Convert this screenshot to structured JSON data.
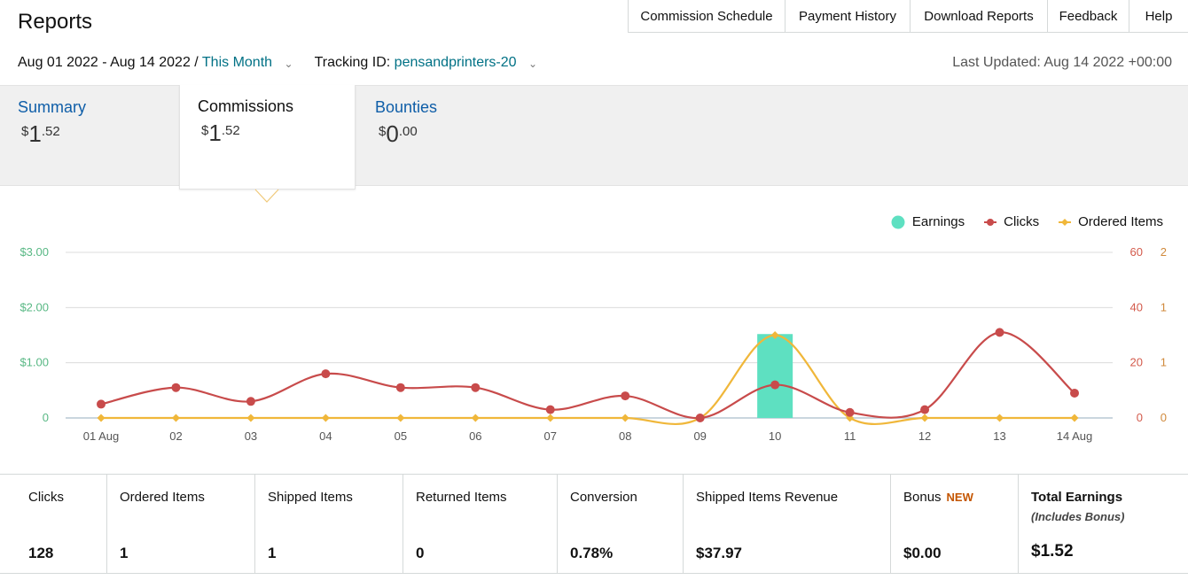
{
  "header": {
    "title": "Reports",
    "nav": [
      "Commission Schedule",
      "Payment History",
      "Download Reports",
      "Feedback",
      "Help"
    ]
  },
  "filters": {
    "date_range": "Aug 01 2022 - Aug 14 2022",
    "separator": "/",
    "period": "This Month",
    "tracking_label": "Tracking ID:",
    "tracking_id": "pensandprinters-20",
    "last_updated": "Last Updated: Aug 14 2022 +00:00"
  },
  "tabs": [
    {
      "label": "Summary",
      "currency": "$",
      "whole": "1",
      "cents": ".52",
      "active": false
    },
    {
      "label": "Commissions",
      "currency": "$",
      "whole": "1",
      "cents": ".52",
      "active": true
    },
    {
      "label": "Bounties",
      "currency": "$",
      "whole": "0",
      "cents": ".00",
      "active": false
    }
  ],
  "chart_data": {
    "type": "line",
    "categories": [
      "01 Aug",
      "02",
      "03",
      "04",
      "05",
      "06",
      "07",
      "08",
      "09",
      "10",
      "11",
      "12",
      "13",
      "14 Aug"
    ],
    "series": [
      {
        "name": "Earnings",
        "kind": "bar",
        "axis": "earnings",
        "color": "#5ee0c1",
        "values": [
          0,
          0,
          0,
          0,
          0,
          0,
          0,
          0,
          0,
          1.52,
          0,
          0,
          0,
          0
        ]
      },
      {
        "name": "Clicks",
        "kind": "line",
        "axis": "clicks",
        "color": "#c84b4b",
        "values": [
          5,
          11,
          6,
          16,
          11,
          11,
          3,
          8,
          0,
          12,
          2,
          3,
          31,
          9
        ]
      },
      {
        "name": "Ordered Items",
        "kind": "line",
        "axis": "items",
        "color": "#f0b73a",
        "values": [
          0,
          0,
          0,
          0,
          0,
          0,
          0,
          0,
          0,
          1,
          0,
          0,
          0,
          0
        ]
      }
    ],
    "earnings_axis": {
      "ticks": [
        "0",
        "$1.00",
        "$2.00",
        "$3.00"
      ],
      "range": [
        0,
        3
      ],
      "color": "#58b884"
    },
    "clicks_axis": {
      "ticks": [
        "0",
        "20",
        "40",
        "60"
      ],
      "range": [
        0,
        60
      ],
      "color": "#d35a4b"
    },
    "items_axis": {
      "ticks": [
        "0",
        "1",
        "1",
        "2"
      ],
      "range": [
        0,
        2
      ],
      "color": "#d08a3c"
    },
    "grid": true,
    "legend_position": "top-right"
  },
  "stats": [
    {
      "label": "Clicks",
      "value": "128"
    },
    {
      "label": "Ordered Items",
      "value": "1"
    },
    {
      "label": "Shipped Items",
      "value": "1"
    },
    {
      "label": "Returned Items",
      "value": "0"
    },
    {
      "label": "Conversion",
      "value": "0.78%"
    },
    {
      "label": "Shipped Items Revenue",
      "value": "$37.97"
    },
    {
      "label": "Bonus",
      "badge": "NEW",
      "value": "$0.00"
    },
    {
      "label": "Total Earnings",
      "sublabel": "(Includes Bonus)",
      "value": "$1.52"
    }
  ]
}
